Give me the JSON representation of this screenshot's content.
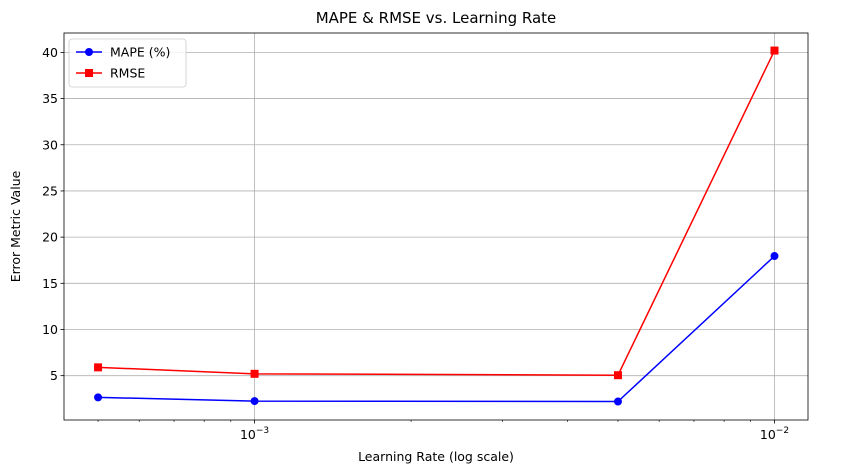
{
  "chart_data": {
    "type": "line",
    "title": "MAPE & RMSE vs. Learning Rate",
    "xlabel": "Learning Rate (log scale)",
    "ylabel": "Error Metric Value",
    "x_scale": "log",
    "x": [
      0.0005,
      0.001,
      0.005,
      0.01
    ],
    "xlim": [
      0.00043,
      0.0116
    ],
    "ylim": [
      0.2,
      42.1
    ],
    "x_ticks": [
      {
        "value": 0.001,
        "base": "10",
        "exp": "−3"
      },
      {
        "value": 0.01,
        "base": "10",
        "exp": "−2"
      }
    ],
    "y_ticks": [
      5,
      10,
      15,
      20,
      25,
      30,
      35,
      40
    ],
    "grid": true,
    "legend_position": "top-left",
    "series": [
      {
        "name": "MAPE (%)",
        "values": [
          2.65,
          2.25,
          2.2,
          17.95
        ],
        "color": "#0000ff",
        "marker": "circle"
      },
      {
        "name": "RMSE",
        "values": [
          5.9,
          5.2,
          5.05,
          40.2
        ],
        "color": "#ff0000",
        "marker": "square"
      }
    ]
  }
}
